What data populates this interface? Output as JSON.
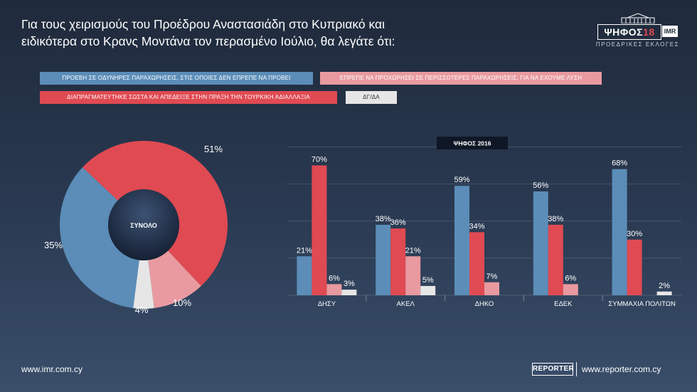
{
  "header": {
    "title_line1": "Για τους χειρισμούς του Προέδρου Αναστασιάδη στο Κυπριακό και",
    "title_line2": "ειδικότερα στο Κρανς Μοντάνα τον περασμένο Ιούλιο, θα λεγάτε ότι:"
  },
  "logo": {
    "word": "ΨΗΦΟΣ",
    "number": "18",
    "imr": "IMR",
    "subtitle": "ΠΡΟΕΔΡΙΚΕΣ ΕΚΛΟΓΕΣ"
  },
  "legend": [
    {
      "label": "ΠΡΟΕΒΗ ΣΕ ΟΔΥΝΗΡΕΣ ΠΑΡΑΧΩΡΗΣΕΙΣ, ΣΤΙΣ ΟΠΟΙΕΣ ΔΕΝ ΕΠΡΕΠΕ ΝΑ ΠΡΟΒΕΙ",
      "color": "#5b8db8"
    },
    {
      "label": "ΕΠΡΕΠΕ ΝΑ ΠΡΟΧΩΡΗΣΕΙ ΣΕ ΠΕΡΙΣΣΟΤΕΡΕΣ ΠΑΡΑΧΩΡΗΣΕΙΣ, ΓΙΑ ΝΑ ΕΧΟΥΜΕ ΛΥΣΗ",
      "color": "#e89aa0"
    },
    {
      "label": "ΔΙΑΠΡΑΓΜΑΤΕΥΤΗΚΕ ΣΩΣΤΑ ΚΑΙ ΑΠΕΔΕΙΞΕ ΣΤΗΝ ΠΡΑΞΗ ΤΗΝ ΤΟΥΡΚΙΚΗ ΑΔΙΑΛΛΑΞΙΑ",
      "color": "#e04a52"
    },
    {
      "label": "ΔΓ/ΔΑ",
      "color": "#e6e6e6"
    }
  ],
  "chart_data": [
    {
      "type": "pie",
      "title": "ΣΥΝΟΛΟ",
      "slices": [
        {
          "series": "ΔΙΑΠΡΑΓΜΑΤΕΥΤΗΚΕ ΣΩΣΤΑ ΚΑΙ ΑΠΕΔΕΙΞΕ ΣΤΗΝ ΠΡΑΞΗ ΤΗΝ ΤΟΥΡΚΙΚΗ ΑΔΙΑΛΛΑΞΙΑ",
          "value": 51,
          "label": "51%",
          "color": "#e04a52"
        },
        {
          "series": "ΕΠΡΕΠΕ ΝΑ ΠΡΟΧΩΡΗΣΕΙ ΣΕ ΠΕΡΙΣΣΟΤΕΡΕΣ ΠΑΡΑΧΩΡΗΣΕΙΣ, ΓΙΑ ΝΑ ΕΧΟΥΜΕ ΛΥΣΗ",
          "value": 10,
          "label": "10%",
          "color": "#e89aa0"
        },
        {
          "series": "ΔΓ/ΔΑ",
          "value": 4,
          "label": "4%",
          "color": "#e6e6e6"
        },
        {
          "series": "ΠΡΟΕΒΗ ΣΕ ΟΔΥΝΗΡΕΣ ΠΑΡΑΧΩΡΗΣΕΙΣ, ΣΤΙΣ ΟΠΟΙΕΣ ΔΕΝ ΕΠΡΕΠΕ ΝΑ ΠΡΟΒΕΙ",
          "value": 35,
          "label": "35%",
          "color": "#5b8db8"
        }
      ]
    },
    {
      "type": "bar",
      "title": "ΨΗΦΟΣ 2016",
      "categories": [
        "ΔΗΣΥ",
        "ΑΚΕΛ",
        "ΔΗΚΟ",
        "ΕΔΕΚ",
        "ΣΥΜΜΑΧΙΑ ΠΟΛΙΤΩΝ"
      ],
      "ylim": [
        0,
        80
      ],
      "grid": true,
      "series": [
        {
          "name": "ΠΡΟΕΒΗ ΣΕ ΟΔΥΝΗΡΕΣ ΠΑΡΑΧΩΡΗΣΕΙΣ, ΣΤΙΣ ΟΠΟΙΕΣ ΔΕΝ ΕΠΡΕΠΕ ΝΑ ΠΡΟΒΕΙ",
          "color": "#5b8db8",
          "values": [
            21,
            38,
            59,
            56,
            68
          ]
        },
        {
          "name": "ΔΙΑΠΡΑΓΜΑΤΕΥΤΗΚΕ ΣΩΣΤΑ ΚΑΙ ΑΠΕΔΕΙΞΕ ΣΤΗΝ ΠΡΑΞΗ ΤΗΝ ΤΟΥΡΚΙΚΗ ΑΔΙΑΛΛΑΞΙΑ",
          "color": "#e04a52",
          "values": [
            70,
            36,
            34,
            38,
            30
          ]
        },
        {
          "name": "ΕΠΡΕΠΕ ΝΑ ΠΡΟΧΩΡΗΣΕΙ ΣΕ ΠΕΡΙΣΣΟΤΕΡΕΣ ΠΑΡΑΧΩΡΗΣΕΙΣ, ΓΙΑ ΝΑ ΕΧΟΥΜΕ ΛΥΣΗ",
          "color": "#e89aa0",
          "values": [
            6,
            21,
            7,
            6,
            null
          ]
        },
        {
          "name": "ΔΓ/ΔΑ",
          "color": "#e6e6e6",
          "values": [
            3,
            5,
            null,
            null,
            2
          ]
        }
      ]
    }
  ],
  "footer": {
    "left_url": "www.imr.com.cy",
    "reporter": "REPORTER",
    "right_url": "www.reporter.com.cy"
  }
}
